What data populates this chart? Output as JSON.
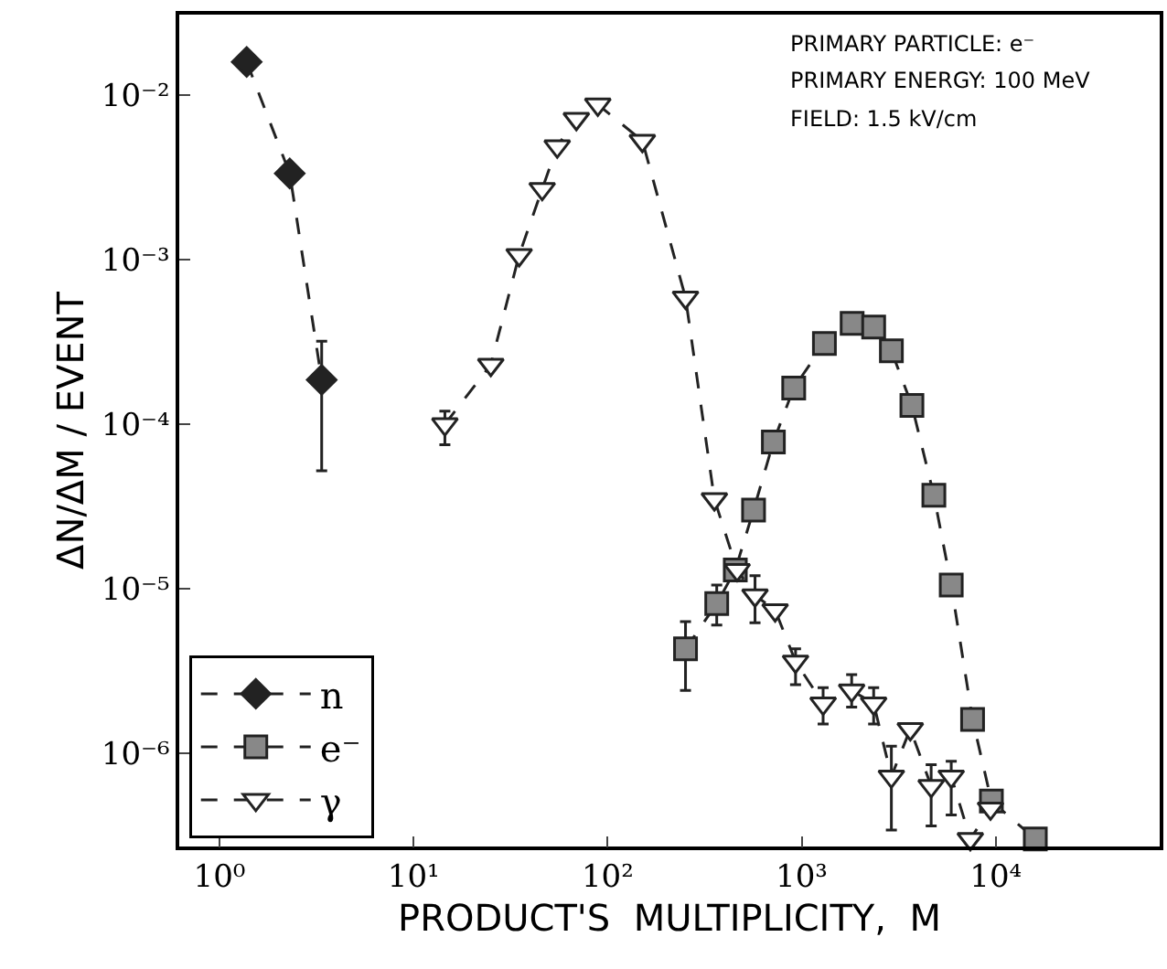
{
  "chart_data": {
    "type": "line",
    "xlabel": "PRODUCT'S  MULTIPLICITY,  M",
    "ylabel": "ΔN/ΔM / EVENT",
    "log": "xy",
    "grid": false,
    "legend": "bottom left",
    "line_style": "dashed",
    "xlim": [
      0.62,
      70000
    ],
    "ylim": [
      2.7e-07,
      0.031
    ],
    "xticks": [
      {
        "value": 1,
        "label": "10⁰"
      },
      {
        "value": 10,
        "label": "10¹"
      },
      {
        "value": 100,
        "label": "10²"
      },
      {
        "value": 1000,
        "label": "10³"
      },
      {
        "value": 10000,
        "label": "10⁴"
      }
    ],
    "yticks": [
      {
        "value": 1e-06,
        "label": "10⁻⁶"
      },
      {
        "value": 1e-05,
        "label": "10⁻⁵"
      },
      {
        "value": 0.0001,
        "label": "10⁻⁴"
      },
      {
        "value": 0.001,
        "label": "10⁻³"
      },
      {
        "value": 0.01,
        "label": "10⁻²"
      }
    ],
    "annotations": [
      "PRIMARY PARTICLE: e⁻",
      "PRIMARY ENERGY: 100 MeV",
      "FIELD: 1.5 kV/cm"
    ],
    "series": [
      {
        "name": "n",
        "color": "#222222",
        "marker": "diamond",
        "x": [
          1.38,
          2.3,
          3.36
        ],
        "values": [
          0.016,
          0.00335,
          0.000186
        ],
        "errors": [
          null,
          null,
          [
            5.2e-05,
            0.00032
          ]
        ]
      },
      {
        "name": "e⁻",
        "color": "#888888",
        "marker": "square",
        "x": [
          252,
          365,
          455,
          565,
          715,
          910,
          1310,
          1820,
          2350,
          2900,
          3700,
          4800,
          5900,
          7600,
          9500,
          16000
        ],
        "values": [
          4.3e-06,
          8.1e-06,
          1.3e-05,
          3e-05,
          7.8e-05,
          0.000166,
          0.00031,
          0.00041,
          0.00039,
          0.00028,
          0.00013,
          3.7e-05,
          1.05e-05,
          1.6e-06,
          5.1e-07,
          3e-07
        ],
        "errors": [
          [
            2.4e-06,
            6.3e-06
          ],
          [
            6e-06,
            1.05e-05
          ],
          null,
          null,
          null,
          null,
          null,
          null,
          null,
          null,
          null,
          null,
          null,
          null,
          null,
          null
        ]
      },
      {
        "name": "γ",
        "color": "#ffffff",
        "marker": "triangle",
        "x": [
          14.5,
          25,
          35,
          46,
          55,
          69,
          89,
          151,
          252,
          355,
          465,
          575,
          730,
          930,
          1290,
          1810,
          2350,
          2900,
          3630,
          4650,
          5900,
          7400,
          9400
        ],
        "values": [
          0.0001,
          0.00023,
          0.00107,
          0.0027,
          0.0049,
          0.0072,
          0.0088,
          0.0053,
          0.00059,
          3.5e-05,
          1.3e-05,
          9.1e-06,
          7.4e-06,
          3.6e-06,
          2e-06,
          2.4e-06,
          2e-06,
          7.2e-07,
          1.4e-06,
          6.3e-07,
          7.2e-07,
          3e-07,
          4.6e-07
        ],
        "errors": [
          [
            7.5e-05,
            0.00012
          ],
          null,
          null,
          null,
          null,
          null,
          null,
          null,
          null,
          null,
          null,
          [
            6.2e-06,
            1.2e-05
          ],
          null,
          [
            2.6e-06,
            4.3e-06
          ],
          [
            1.5e-06,
            2.5e-06
          ],
          [
            1.9e-06,
            3e-06
          ],
          [
            1.5e-06,
            2.5e-06
          ],
          [
            3.4e-07,
            1.1e-06
          ],
          null,
          [
            3.6e-07,
            8.5e-07
          ],
          [
            4.2e-07,
            8.9e-07
          ],
          null,
          null
        ]
      }
    ]
  }
}
